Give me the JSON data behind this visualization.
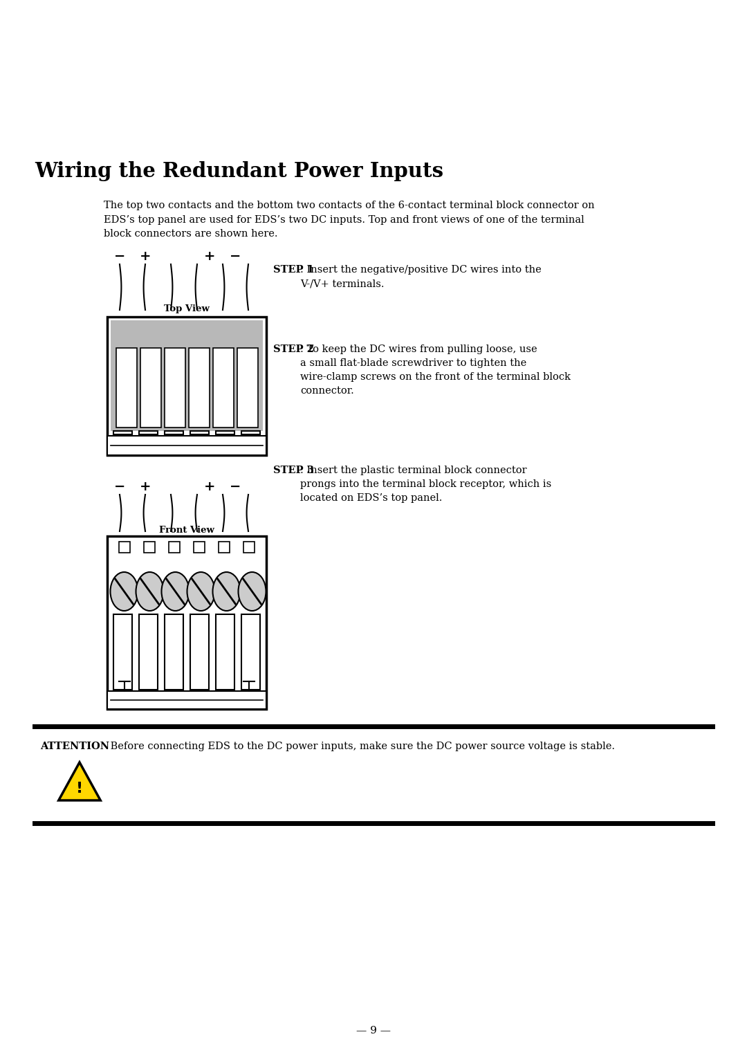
{
  "title": "Wiring the Redundant Power Inputs",
  "intro_text": "The top two contacts and the bottom two contacts of the 6-contact terminal block connector on\nEDS’s top panel are used for EDS’s two DC inputs. Top and front views of one of the terminal\nblock connectors are shown here.",
  "step1_bold": "STEP 1",
  "step1_text": ": Insert the negative/positive DC wires into the\nV-/V+ terminals.",
  "step2_bold": "STEP 2",
  "step2_text": ": To keep the DC wires from pulling loose, use\na small flat-blade screwdriver to tighten the\nwire-clamp screws on the front of the terminal block\nconnector.",
  "step3_bold": "STEP 3",
  "step3_text": ": Insert the plastic terminal block connector\nprongs into the terminal block receptor, which is\nlocated on EDS’s top panel.",
  "attention_bold": "ATTENTION",
  "attention_text": " Before connecting EDS to the DC power inputs, make sure the DC power source voltage is stable.",
  "top_view_label": "Top View",
  "front_view_label": "Front View",
  "top_signs": [
    "−",
    "+",
    "+",
    "−"
  ],
  "front_signs": [
    "−",
    "+",
    "+",
    "−"
  ],
  "page_number": "9",
  "bg_color": "#ffffff",
  "text_color": "#000000"
}
